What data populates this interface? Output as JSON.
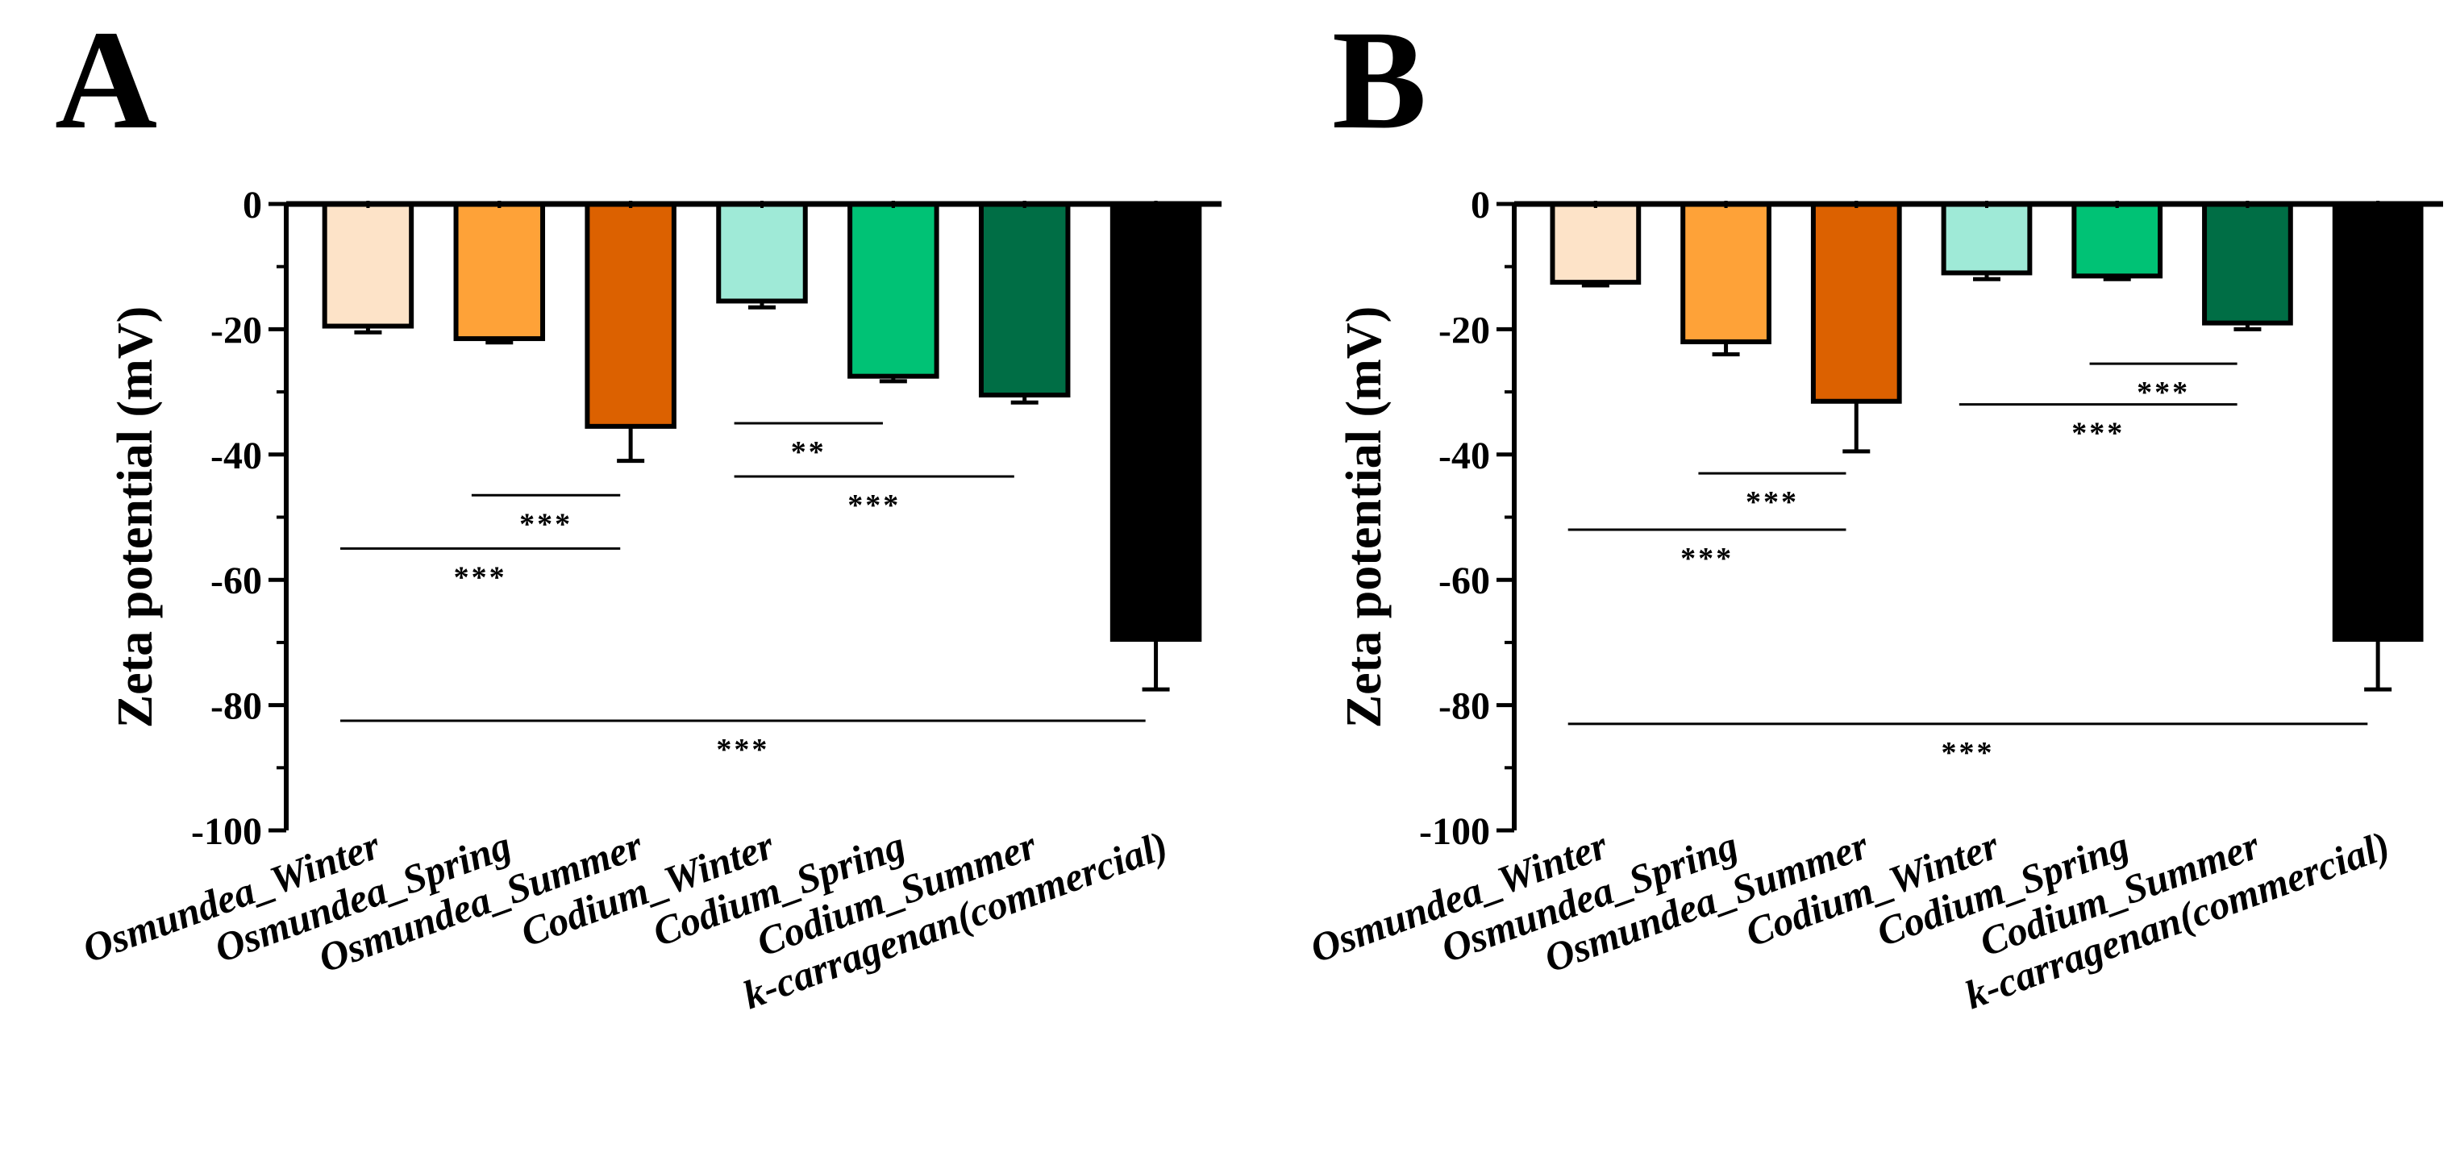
{
  "chart_data": [
    {
      "panel": "A",
      "type": "bar",
      "ylabel": "Zeta potential (mV)",
      "xlabel": "",
      "ylim": [
        -100,
        0
      ],
      "yticks": [
        0,
        -20,
        -40,
        -60,
        -80,
        -100
      ],
      "categories": [
        "Osmundea_Winter",
        "Osmundea_Spring",
        "Osmundea_Summer",
        "Codium_Winter",
        "Codium_Spring",
        "Codium_Summer",
        "k-carragenan(commercial)"
      ],
      "values": [
        -19.5,
        -21.5,
        -35.5,
        -15.5,
        -27.5,
        -30.5,
        -69.5
      ],
      "errors": [
        1.0,
        0.6,
        5.5,
        1.0,
        0.8,
        1.2,
        8.0
      ],
      "colors": [
        "#fde3c8",
        "#fea238",
        "#dc6100",
        "#9fead7",
        "#00c275",
        "#006e45",
        "#000000"
      ],
      "significance": [
        {
          "from": 2,
          "to": 3,
          "y": -46.5,
          "label": "***"
        },
        {
          "from": 1,
          "to": 3,
          "y": -55.0,
          "label": "***"
        },
        {
          "from": 4,
          "to": 5,
          "y": -35.0,
          "label": "**"
        },
        {
          "from": 4,
          "to": 6,
          "y": -43.5,
          "label": "***"
        },
        {
          "from": 1,
          "to": 7,
          "y": -82.5,
          "label": "***"
        }
      ]
    },
    {
      "panel": "B",
      "type": "bar",
      "ylabel": "Zeta potential (mV)",
      "xlabel": "",
      "ylim": [
        -100,
        0
      ],
      "yticks": [
        0,
        -20,
        -40,
        -60,
        -80,
        -100
      ],
      "categories": [
        "Osmundea_Winter",
        "Osmundea_Spring",
        "Osmundea_Summer",
        "Codium_Winter",
        "Codium_Spring",
        "Codium_Summer",
        "k-carragenan(commercial)"
      ],
      "values": [
        -12.5,
        -22.0,
        -31.5,
        -11.0,
        -11.5,
        -19.0,
        -69.5
      ],
      "errors": [
        0.5,
        2.0,
        8.0,
        1.0,
        0.5,
        1.0,
        8.0
      ],
      "colors": [
        "#fde3c8",
        "#fea238",
        "#dc6100",
        "#9fead7",
        "#00c275",
        "#006e45",
        "#000000"
      ],
      "significance": [
        {
          "from": 2,
          "to": 3,
          "y": -43.0,
          "label": "***"
        },
        {
          "from": 1,
          "to": 3,
          "y": -52.0,
          "label": "***"
        },
        {
          "from": 5,
          "to": 6,
          "y": -25.5,
          "label": "***"
        },
        {
          "from": 4,
          "to": 6,
          "y": -32.0,
          "label": "***"
        },
        {
          "from": 1,
          "to": 7,
          "y": -83.0,
          "label": "***"
        }
      ]
    }
  ]
}
